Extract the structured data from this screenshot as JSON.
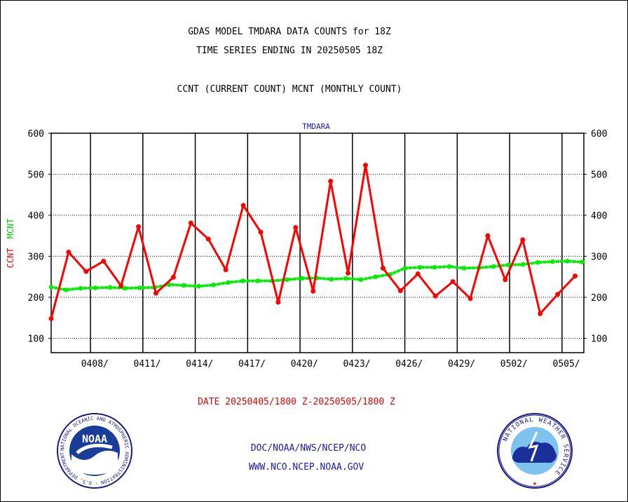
{
  "header": {
    "title_line1": "GDAS MODEL TMDARA DATA COUNTS for 18Z",
    "title_line2": "TIME SERIES ENDING IN 20250505 18Z",
    "subtitle": "CCNT (CURRENT COUNT) MCNT (MONTHLY COUNT)"
  },
  "footer": {
    "date_range": "DATE 20250405/1800 Z-20250505/1800 Z",
    "org_line": "DOC/NOAA/NWS/NCEP/NCO",
    "url_line": "WWW.NCO.NCEP.NOAA.GOV",
    "noaa_logo_text": "NOAA",
    "noaa_seal_ring_text": "NATIONAL OCEANIC AND ATMOSPHERIC ADMINISTRATION · U.S. DEPARTMENT OF COMMERCE",
    "nws_seal_ring_text": "NATIONAL WEATHER SERVICE"
  },
  "chart_data": {
    "type": "line",
    "title": "TMDARA",
    "ylabel_ccnt": "CCNT",
    "ylabel_mcnt": "MCNT",
    "ylim": [
      65,
      600
    ],
    "yticks": [
      100,
      200,
      300,
      400,
      500,
      600
    ],
    "xlim": [
      0,
      30.5
    ],
    "xtick_labels": [
      {
        "x": 2.5,
        "label": "0408/"
      },
      {
        "x": 5.5,
        "label": "0411/"
      },
      {
        "x": 8.5,
        "label": "0414/"
      },
      {
        "x": 11.5,
        "label": "0417/"
      },
      {
        "x": 14.5,
        "label": "0420/"
      },
      {
        "x": 17.5,
        "label": "0423/"
      },
      {
        "x": 20.5,
        "label": "0426/"
      },
      {
        "x": 23.5,
        "label": "0429/"
      },
      {
        "x": 26.5,
        "label": "0502/"
      },
      {
        "x": 29.5,
        "label": "0505/"
      }
    ],
    "vertical_gridlines": [
      2.25,
      5.25,
      8.25,
      11.25,
      14.25,
      17.25,
      20.25,
      23.25,
      26.25,
      29.25
    ],
    "horizontal_gridlines": [
      100,
      200,
      300,
      400,
      500
    ],
    "colors": {
      "ccnt": "#ff0000",
      "mcnt": "#00ee00",
      "grid": "#000000"
    },
    "series": [
      {
        "name": "CCNT",
        "values": [
          148,
          310,
          263,
          288,
          228,
          372,
          210,
          249,
          381,
          342,
          267,
          424,
          359,
          188,
          370,
          215,
          483,
          259,
          522,
          271,
          216,
          257,
          203,
          238,
          197,
          350,
          243,
          340,
          160,
          207,
          252
        ]
      },
      {
        "name": "MCNT",
        "values": [
          225,
          218,
          222,
          223,
          224,
          222,
          223,
          224,
          231,
          229,
          227,
          230,
          236,
          240,
          240,
          240,
          243,
          246,
          247,
          244,
          246,
          243,
          250,
          256,
          271,
          273,
          273,
          275,
          271,
          272,
          275,
          279,
          280,
          285,
          287,
          288,
          286
        ]
      }
    ],
    "mcnt_x_start": 0,
    "mcnt_x_end": 30.4
  }
}
